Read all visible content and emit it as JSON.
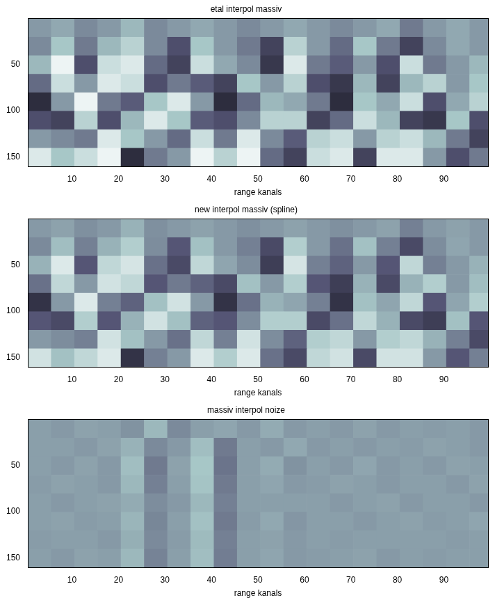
{
  "chart_data": [
    {
      "type": "heatmap",
      "title": "etal interpol massiv",
      "xlabel": "range kanals",
      "color": "bone",
      "grid": false,
      "xlim": [
        0.5,
        99.5
      ],
      "ylim": [
        160.5,
        0.5
      ],
      "xticks": [
        10,
        20,
        30,
        40,
        50,
        60,
        70,
        80,
        90
      ],
      "yticks": [
        50,
        100,
        150
      ],
      "x_edges": [
        0.5,
        5.5,
        10.5,
        15.5,
        20.5,
        25.5,
        30.5,
        35.5,
        40.5,
        45.5,
        50.5,
        55.5,
        60.5,
        65.5,
        70.5,
        75.5,
        80.5,
        85.5,
        90.5,
        95.5,
        99.5
      ],
      "y_edges": [
        0.5,
        20.5,
        40.5,
        60.5,
        80.5,
        100.5,
        120.5,
        140.5,
        160.5
      ],
      "clim": [
        0,
        1
      ],
      "cells": [
        [
          0.6,
          0.65,
          0.55,
          0.6,
          0.7,
          0.55,
          0.6,
          0.65,
          0.6,
          0.55,
          0.6,
          0.65,
          0.6,
          0.55,
          0.6,
          0.65,
          0.5,
          0.6,
          0.65,
          0.6
        ],
        [
          0.55,
          0.75,
          0.5,
          0.7,
          0.8,
          0.55,
          0.35,
          0.75,
          0.6,
          0.5,
          0.3,
          0.8,
          0.6,
          0.45,
          0.75,
          0.5,
          0.3,
          0.55,
          0.65,
          0.6
        ],
        [
          0.7,
          0.95,
          0.35,
          0.85,
          0.9,
          0.45,
          0.3,
          0.85,
          0.65,
          0.55,
          0.25,
          0.9,
          0.5,
          0.4,
          0.6,
          0.35,
          0.85,
          0.5,
          0.6,
          0.7
        ],
        [
          0.45,
          0.85,
          0.6,
          0.9,
          0.85,
          0.35,
          0.5,
          0.4,
          0.3,
          0.75,
          0.6,
          0.8,
          0.35,
          0.25,
          0.7,
          0.3,
          0.7,
          0.8,
          0.6,
          0.75
        ],
        [
          0.2,
          0.6,
          0.95,
          0.5,
          0.4,
          0.75,
          0.9,
          0.6,
          0.2,
          0.45,
          0.7,
          0.65,
          0.5,
          0.2,
          0.75,
          0.65,
          0.85,
          0.35,
          0.65,
          0.8
        ],
        [
          0.35,
          0.3,
          0.8,
          0.35,
          0.7,
          0.9,
          0.75,
          0.4,
          0.35,
          0.55,
          0.8,
          0.8,
          0.3,
          0.45,
          0.85,
          0.7,
          0.3,
          0.25,
          0.75,
          0.35
        ],
        [
          0.6,
          0.55,
          0.5,
          0.9,
          0.75,
          0.6,
          0.45,
          0.85,
          0.5,
          0.9,
          0.55,
          0.4,
          0.8,
          0.85,
          0.6,
          0.8,
          0.85,
          0.7,
          0.5,
          0.3
        ],
        [
          0.9,
          0.75,
          0.85,
          0.95,
          0.2,
          0.5,
          0.6,
          0.95,
          0.8,
          0.95,
          0.45,
          0.3,
          0.85,
          0.9,
          0.3,
          0.9,
          0.9,
          0.6,
          0.35,
          0.5
        ]
      ]
    },
    {
      "type": "heatmap",
      "title": "new interpol massiv (spline)",
      "xlabel": "range kanals",
      "color": "bone",
      "grid": false,
      "xlim": [
        0.5,
        99.5
      ],
      "ylim": [
        160.5,
        0.5
      ],
      "xticks": [
        10,
        20,
        30,
        40,
        50,
        60,
        70,
        80,
        90
      ],
      "yticks": [
        50,
        100,
        150
      ],
      "x_edges": [
        0.5,
        5.5,
        10.5,
        15.5,
        20.5,
        25.5,
        30.5,
        35.5,
        40.5,
        45.5,
        50.5,
        55.5,
        60.5,
        65.5,
        70.5,
        75.5,
        80.5,
        85.5,
        90.5,
        95.5,
        99.5
      ],
      "y_edges": [
        0.5,
        20.5,
        40.5,
        60.5,
        80.5,
        100.5,
        120.5,
        140.5,
        160.5
      ],
      "clim": [
        0,
        1
      ],
      "cells": [
        [
          0.6,
          0.63,
          0.57,
          0.6,
          0.68,
          0.57,
          0.6,
          0.63,
          0.6,
          0.57,
          0.6,
          0.63,
          0.6,
          0.57,
          0.6,
          0.63,
          0.52,
          0.6,
          0.63,
          0.6
        ],
        [
          0.55,
          0.72,
          0.52,
          0.68,
          0.78,
          0.56,
          0.38,
          0.73,
          0.6,
          0.52,
          0.33,
          0.78,
          0.6,
          0.47,
          0.73,
          0.52,
          0.33,
          0.56,
          0.64,
          0.6
        ],
        [
          0.68,
          0.9,
          0.38,
          0.82,
          0.88,
          0.47,
          0.33,
          0.82,
          0.64,
          0.56,
          0.28,
          0.88,
          0.52,
          0.42,
          0.6,
          0.38,
          0.82,
          0.52,
          0.6,
          0.68
        ],
        [
          0.47,
          0.82,
          0.6,
          0.87,
          0.82,
          0.38,
          0.5,
          0.42,
          0.33,
          0.73,
          0.6,
          0.78,
          0.38,
          0.28,
          0.68,
          0.33,
          0.68,
          0.78,
          0.6,
          0.72
        ],
        [
          0.23,
          0.6,
          0.9,
          0.52,
          0.42,
          0.73,
          0.87,
          0.6,
          0.23,
          0.47,
          0.68,
          0.64,
          0.52,
          0.23,
          0.73,
          0.64,
          0.82,
          0.38,
          0.64,
          0.78
        ],
        [
          0.38,
          0.33,
          0.78,
          0.38,
          0.68,
          0.87,
          0.73,
          0.42,
          0.38,
          0.56,
          0.78,
          0.78,
          0.33,
          0.47,
          0.82,
          0.68,
          0.33,
          0.28,
          0.73,
          0.38
        ],
        [
          0.6,
          0.56,
          0.52,
          0.87,
          0.73,
          0.6,
          0.47,
          0.82,
          0.52,
          0.87,
          0.56,
          0.42,
          0.78,
          0.82,
          0.6,
          0.78,
          0.82,
          0.68,
          0.52,
          0.33
        ],
        [
          0.87,
          0.73,
          0.82,
          0.9,
          0.23,
          0.52,
          0.6,
          0.9,
          0.78,
          0.9,
          0.47,
          0.33,
          0.82,
          0.87,
          0.33,
          0.87,
          0.87,
          0.6,
          0.38,
          0.52
        ]
      ]
    },
    {
      "type": "heatmap",
      "title": "massiv interpol noize",
      "xlabel": "range kanals",
      "color": "bone",
      "grid": false,
      "xlim": [
        0.5,
        99.5
      ],
      "ylim": [
        160.5,
        0.5
      ],
      "xticks": [
        10,
        20,
        30,
        40,
        50,
        60,
        70,
        80,
        90
      ],
      "yticks": [
        50,
        100,
        150
      ],
      "x_edges": [
        0.5,
        5.5,
        10.5,
        15.5,
        20.5,
        25.5,
        30.5,
        35.5,
        40.5,
        45.5,
        50.5,
        55.5,
        60.5,
        65.5,
        70.5,
        75.5,
        80.5,
        85.5,
        90.5,
        95.5,
        99.5
      ],
      "y_edges": [
        0.5,
        20.5,
        40.5,
        60.5,
        80.5,
        100.5,
        120.5,
        140.5,
        160.5
      ],
      "clim": [
        0,
        1
      ],
      "cells": [
        [
          0.62,
          0.6,
          0.63,
          0.62,
          0.58,
          0.7,
          0.55,
          0.62,
          0.64,
          0.6,
          0.66,
          0.6,
          0.62,
          0.6,
          0.63,
          0.6,
          0.62,
          0.61,
          0.62,
          0.6
        ],
        [
          0.62,
          0.62,
          0.6,
          0.63,
          0.68,
          0.55,
          0.6,
          0.72,
          0.5,
          0.62,
          0.6,
          0.65,
          0.6,
          0.62,
          0.6,
          0.62,
          0.61,
          0.63,
          0.62,
          0.6
        ],
        [
          0.62,
          0.6,
          0.63,
          0.6,
          0.72,
          0.5,
          0.63,
          0.75,
          0.48,
          0.62,
          0.66,
          0.58,
          0.62,
          0.6,
          0.64,
          0.6,
          0.62,
          0.6,
          0.63,
          0.62
        ],
        [
          0.61,
          0.63,
          0.62,
          0.6,
          0.7,
          0.52,
          0.62,
          0.74,
          0.5,
          0.62,
          0.64,
          0.6,
          0.61,
          0.63,
          0.62,
          0.6,
          0.62,
          0.62,
          0.6,
          0.63
        ],
        [
          0.62,
          0.6,
          0.62,
          0.63,
          0.66,
          0.56,
          0.6,
          0.7,
          0.52,
          0.62,
          0.62,
          0.62,
          0.62,
          0.6,
          0.62,
          0.63,
          0.6,
          0.62,
          0.62,
          0.6
        ],
        [
          0.62,
          0.63,
          0.61,
          0.62,
          0.69,
          0.54,
          0.62,
          0.73,
          0.5,
          0.61,
          0.65,
          0.59,
          0.62,
          0.62,
          0.6,
          0.62,
          0.63,
          0.61,
          0.62,
          0.64
        ],
        [
          0.61,
          0.62,
          0.62,
          0.6,
          0.67,
          0.55,
          0.61,
          0.71,
          0.52,
          0.62,
          0.63,
          0.6,
          0.62,
          0.61,
          0.62,
          0.62,
          0.62,
          0.62,
          0.61,
          0.62
        ],
        [
          0.62,
          0.6,
          0.63,
          0.62,
          0.7,
          0.53,
          0.62,
          0.72,
          0.51,
          0.62,
          0.64,
          0.6,
          0.61,
          0.62,
          0.63,
          0.6,
          0.62,
          0.61,
          0.62,
          0.62
        ]
      ]
    }
  ]
}
